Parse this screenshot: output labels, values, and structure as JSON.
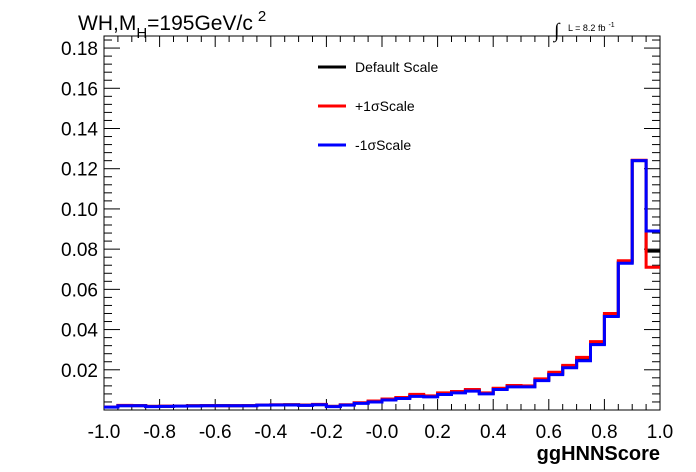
{
  "chart_data": {
    "type": "line",
    "title_parts": {
      "main": "WH,M",
      "subscript": "H",
      "rest": "=195GeV/c",
      "superscript": "2"
    },
    "lumi_label": {
      "integral_symbol": "∫",
      "text": "L = 8.2 fb",
      "superscript": "-1"
    },
    "xlabel": "ggHNNScore",
    "ylabel": "",
    "xlim": [
      -1.0,
      1.0
    ],
    "ylim": [
      0.0,
      0.186
    ],
    "x_ticks": [
      {
        "value": -1.0,
        "label": "-1.0"
      },
      {
        "value": -0.8,
        "label": "-0.8"
      },
      {
        "value": -0.6,
        "label": "-0.6"
      },
      {
        "value": -0.4,
        "label": "-0.4"
      },
      {
        "value": -0.2,
        "label": "-0.2"
      },
      {
        "value": 0.0,
        "label": "-0.0"
      },
      {
        "value": 0.2,
        "label": "0.2"
      },
      {
        "value": 0.4,
        "label": "0.4"
      },
      {
        "value": 0.6,
        "label": "0.6"
      },
      {
        "value": 0.8,
        "label": "0.8"
      },
      {
        "value": 1.0,
        "label": "1.0"
      }
    ],
    "y_ticks": [
      {
        "value": 0.02,
        "label": "0.02"
      },
      {
        "value": 0.04,
        "label": "0.04"
      },
      {
        "value": 0.06,
        "label": "0.06"
      },
      {
        "value": 0.08,
        "label": "0.08"
      },
      {
        "value": 0.1,
        "label": "0.10"
      },
      {
        "value": 0.12,
        "label": "0.12"
      },
      {
        "value": 0.14,
        "label": "0.14"
      },
      {
        "value": 0.16,
        "label": "0.16"
      },
      {
        "value": 0.18,
        "label": "0.18"
      }
    ],
    "bin_edges": [
      -1.0,
      -0.95,
      -0.9,
      -0.85,
      -0.8,
      -0.75,
      -0.7,
      -0.65,
      -0.6,
      -0.55,
      -0.5,
      -0.45,
      -0.4,
      -0.35,
      -0.3,
      -0.25,
      -0.2,
      -0.15,
      -0.1,
      -0.05,
      0.0,
      0.05,
      0.1,
      0.15,
      0.2,
      0.25,
      0.3,
      0.35,
      0.4,
      0.45,
      0.5,
      0.55,
      0.6,
      0.65,
      0.7,
      0.75,
      0.8,
      0.85,
      0.9,
      0.95,
      1.0
    ],
    "series": [
      {
        "name": "Default Scale",
        "color": "#000000",
        "values": [
          0.0015,
          0.0022,
          0.0022,
          0.0018,
          0.0018,
          0.002,
          0.0021,
          0.0022,
          0.0022,
          0.0021,
          0.0022,
          0.0025,
          0.0025,
          0.0026,
          0.0024,
          0.0027,
          0.0018,
          0.0025,
          0.0035,
          0.0042,
          0.0052,
          0.006,
          0.0072,
          0.0068,
          0.008,
          0.0088,
          0.0098,
          0.0082,
          0.0105,
          0.0118,
          0.0118,
          0.015,
          0.018,
          0.0215,
          0.025,
          0.033,
          0.047,
          0.0735,
          0.124,
          0.079
        ]
      },
      {
        "name": "+1σScale",
        "color": "#ff0000",
        "values": [
          0.0015,
          0.0023,
          0.0022,
          0.0018,
          0.0019,
          0.002,
          0.0021,
          0.0022,
          0.0021,
          0.0022,
          0.0022,
          0.0025,
          0.0026,
          0.0026,
          0.0024,
          0.0028,
          0.0018,
          0.0026,
          0.0036,
          0.0045,
          0.0055,
          0.0062,
          0.0078,
          0.007,
          0.0085,
          0.0092,
          0.0102,
          0.0085,
          0.0108,
          0.0122,
          0.012,
          0.0155,
          0.0188,
          0.0222,
          0.0262,
          0.034,
          0.048,
          0.0742,
          0.1242,
          0.071
        ]
      },
      {
        "name": "-1σScale",
        "color": "#0000ff",
        "values": [
          0.0014,
          0.0021,
          0.0021,
          0.0017,
          0.0018,
          0.0019,
          0.002,
          0.0021,
          0.0021,
          0.0021,
          0.0021,
          0.0024,
          0.0025,
          0.0025,
          0.0023,
          0.0026,
          0.0017,
          0.0024,
          0.0033,
          0.004,
          0.005,
          0.0057,
          0.0068,
          0.0065,
          0.0077,
          0.0085,
          0.0094,
          0.008,
          0.0102,
          0.0115,
          0.0115,
          0.0146,
          0.0176,
          0.021,
          0.0245,
          0.0325,
          0.0465,
          0.073,
          0.124,
          0.089
        ]
      }
    ],
    "legend": {
      "placement": "top-center",
      "border": false
    },
    "grid": false
  }
}
